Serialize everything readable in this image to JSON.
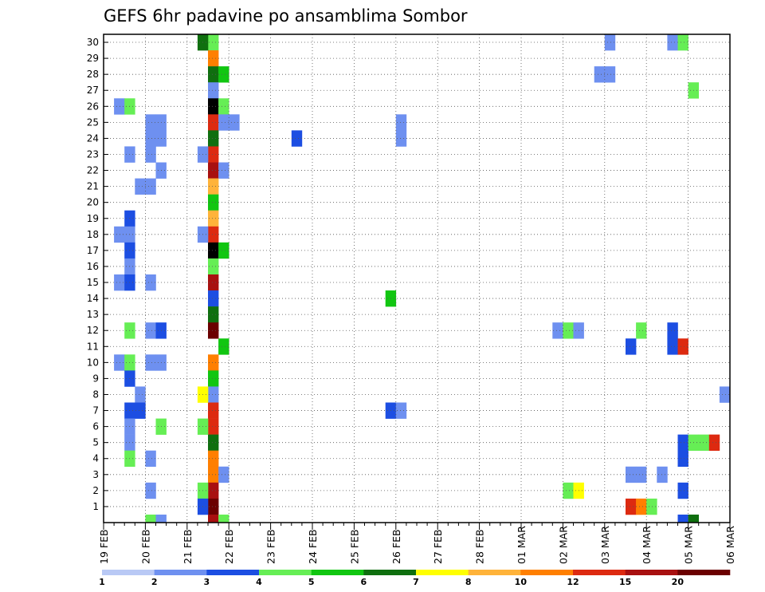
{
  "chart_data": {
    "type": "heatmap",
    "title": "GEFS 6hr padavine po ansamblima Sombor",
    "xlabel": "",
    "ylabel": "",
    "x_ticks": [
      "19 FEB",
      "20 FEB",
      "21 FEB",
      "22 FEB",
      "23 FEB",
      "24 FEB",
      "25 FEB",
      "26 FEB",
      "27 FEB",
      "28 FEB",
      "01 MAR",
      "02 MAR",
      "03 MAR",
      "04 MAR",
      "05 MAR",
      "06 MAR"
    ],
    "y_ticks": [
      "1",
      "2",
      "3",
      "4",
      "5",
      "6",
      "7",
      "8",
      "9",
      "10",
      "11",
      "12",
      "13",
      "14",
      "15",
      "16",
      "17",
      "18",
      "19",
      "20",
      "21",
      "22",
      "23",
      "24",
      "25",
      "26",
      "27",
      "28",
      "29",
      "30"
    ],
    "time_step_hours": 6,
    "members_range": [
      0,
      30
    ],
    "grid": true,
    "legend_position": "bottom",
    "legend": {
      "labels": [
        "1",
        "2",
        "3",
        "4",
        "5",
        "6",
        "7",
        "8",
        "10",
        "12",
        "15",
        "20"
      ],
      "colors": [
        "#b9c9f5",
        "#6e90f0",
        "#1c4ee2",
        "#66ee55",
        "#11c611",
        "#0f6f0f",
        "#ffff00",
        "#ffb33a",
        "#ff7f00",
        "#dd2a10",
        "#a81010",
        "#6b0000"
      ]
    },
    "cells": [
      [
        10,
        30,
        3
      ],
      [
        10,
        29,
        8
      ],
      [
        10,
        28,
        5
      ],
      [
        11,
        28,
        4
      ],
      [
        10,
        27,
        1
      ],
      [
        10,
        26,
        12
      ],
      [
        11,
        26,
        3
      ],
      [
        10,
        25,
        9
      ],
      [
        11,
        25,
        1
      ],
      [
        12,
        25,
        1
      ],
      [
        10,
        24,
        5
      ],
      [
        10,
        23,
        9
      ],
      [
        10,
        22,
        10
      ],
      [
        11,
        22,
        1
      ],
      [
        10,
        21,
        7
      ],
      [
        10,
        20,
        4
      ],
      [
        10,
        19,
        7
      ],
      [
        10,
        18,
        9
      ],
      [
        10,
        17,
        12
      ],
      [
        11,
        17,
        4
      ],
      [
        10,
        16,
        3
      ],
      [
        10,
        15,
        10
      ],
      [
        10,
        14,
        2
      ],
      [
        10,
        13,
        5
      ],
      [
        10,
        12,
        11
      ],
      [
        11,
        11,
        4
      ],
      [
        10,
        10,
        8
      ],
      [
        10,
        9,
        4
      ],
      [
        10,
        8,
        1
      ],
      [
        10,
        7,
        9
      ],
      [
        10,
        6,
        9
      ],
      [
        10,
        5,
        5
      ],
      [
        10,
        4,
        8
      ],
      [
        10,
        3,
        8
      ],
      [
        11,
        3,
        1
      ],
      [
        10,
        2,
        10
      ],
      [
        10,
        1,
        11
      ],
      [
        10,
        0,
        10
      ],
      [
        11,
        0,
        3
      ],
      [
        9,
        30,
        5
      ],
      [
        9,
        23,
        1
      ],
      [
        9,
        18,
        1
      ],
      [
        9,
        8,
        6
      ],
      [
        9,
        6,
        3
      ],
      [
        9,
        2,
        3
      ],
      [
        9,
        1,
        2
      ],
      [
        1,
        26,
        1
      ],
      [
        2,
        26,
        3
      ],
      [
        4,
        25,
        1
      ],
      [
        5,
        25,
        1
      ],
      [
        4,
        24,
        1
      ],
      [
        5,
        24,
        1
      ],
      [
        2,
        23,
        1
      ],
      [
        4,
        23,
        1
      ],
      [
        5,
        22,
        1
      ],
      [
        3,
        21,
        1
      ],
      [
        4,
        21,
        1
      ],
      [
        2,
        19,
        2
      ],
      [
        1,
        18,
        1
      ],
      [
        2,
        18,
        1
      ],
      [
        2,
        17,
        2
      ],
      [
        2,
        16,
        1
      ],
      [
        1,
        15,
        1
      ],
      [
        2,
        15,
        2
      ],
      [
        4,
        15,
        1
      ],
      [
        2,
        12,
        3
      ],
      [
        4,
        12,
        1
      ],
      [
        5,
        12,
        2
      ],
      [
        1,
        10,
        1
      ],
      [
        2,
        10,
        3
      ],
      [
        4,
        10,
        1
      ],
      [
        5,
        10,
        1
      ],
      [
        2,
        9,
        2
      ],
      [
        3,
        8,
        1
      ],
      [
        2,
        7,
        2
      ],
      [
        3,
        7,
        2
      ],
      [
        2,
        6,
        1
      ],
      [
        5,
        6,
        3
      ],
      [
        2,
        5,
        1
      ],
      [
        2,
        4,
        3
      ],
      [
        4,
        4,
        1
      ],
      [
        4,
        2,
        1
      ],
      [
        4,
        0,
        3
      ],
      [
        5,
        0,
        1
      ],
      [
        18,
        24,
        2
      ],
      [
        28,
        24,
        1
      ],
      [
        28,
        25,
        1
      ],
      [
        27,
        7,
        2
      ],
      [
        28,
        7,
        1
      ],
      [
        27,
        14,
        4
      ],
      [
        43,
        12,
        1
      ],
      [
        44,
        12,
        3
      ],
      [
        45,
        12,
        1
      ],
      [
        44,
        2,
        3
      ],
      [
        45,
        2,
        6
      ],
      [
        48,
        30,
        1
      ],
      [
        47,
        28,
        1
      ],
      [
        48,
        28,
        1
      ],
      [
        51,
        12,
        3
      ],
      [
        50,
        11,
        2
      ],
      [
        50,
        3,
        1
      ],
      [
        51,
        3,
        1
      ],
      [
        53,
        3,
        1
      ],
      [
        50,
        1,
        9
      ],
      [
        51,
        1,
        8
      ],
      [
        52,
        1,
        3
      ],
      [
        54,
        30,
        1
      ],
      [
        55,
        30,
        3
      ],
      [
        56,
        27,
        3
      ],
      [
        54,
        12,
        2
      ],
      [
        54,
        11,
        2
      ],
      [
        55,
        11,
        9
      ],
      [
        55,
        5,
        2
      ],
      [
        56,
        5,
        3
      ],
      [
        57,
        5,
        3
      ],
      [
        58,
        5,
        9
      ],
      [
        55,
        4,
        2
      ],
      [
        55,
        2,
        2
      ],
      [
        55,
        0,
        2
      ],
      [
        56,
        0,
        5
      ],
      [
        59,
        8,
        1
      ]
    ]
  }
}
